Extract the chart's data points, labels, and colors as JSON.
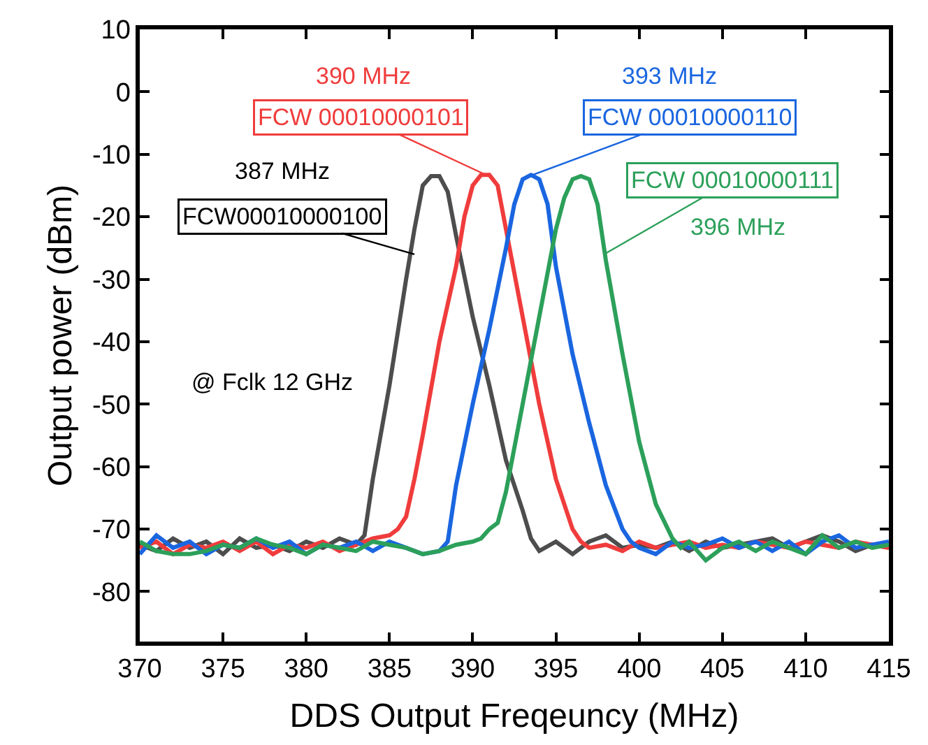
{
  "chart_data": {
    "type": "line",
    "xlabel": "DDS Output Freqeuncy (MHz)",
    "ylabel": "Output power (dBm)",
    "xlim": [
      370,
      415
    ],
    "xticks": [
      370,
      375,
      380,
      385,
      390,
      395,
      400,
      405,
      410,
      415
    ],
    "ylim": [
      -88,
      10
    ],
    "yticks": [
      -80,
      -70,
      -60,
      -50,
      -40,
      -30,
      -20,
      -10,
      0,
      10
    ],
    "marker": "none",
    "line_style": "solid",
    "series": [
      {
        "color": "#4d4d4d",
        "x": [
          370,
          371,
          372,
          373,
          374,
          375,
          376,
          377,
          378,
          379,
          380,
          381,
          382,
          383,
          383.5,
          384,
          385,
          386,
          386.5,
          387,
          387.5,
          388,
          388.5,
          389,
          390,
          391,
          392,
          393,
          393.5,
          394,
          395,
          396,
          397,
          398,
          399,
          400,
          401,
          402,
          403,
          404,
          405,
          406,
          407,
          408,
          409,
          410,
          411,
          412,
          413,
          414,
          415
        ],
        "values": [
          -72.5,
          -73.5,
          -71.5,
          -73,
          -72,
          -74,
          -71.5,
          -73,
          -72.5,
          -73.5,
          -72,
          -73,
          -71.5,
          -72.5,
          -71,
          -62,
          -47,
          -30,
          -22,
          -15,
          -13.5,
          -13.5,
          -16,
          -23,
          -36,
          -47,
          -59,
          -67,
          -71.5,
          -73.5,
          -72,
          -74,
          -72,
          -71,
          -73,
          -72.5,
          -73,
          -72,
          -73.5,
          -72,
          -73,
          -72.5,
          -72,
          -71.5,
          -73,
          -72,
          -71,
          -72,
          -73.5,
          -72.5,
          -73
        ]
      },
      {
        "color": "#f03c3c",
        "x": [
          370,
          371,
          372,
          373,
          374,
          375,
          376,
          377,
          378,
          379,
          380,
          381,
          382,
          383,
          384,
          385,
          385.5,
          386,
          386.5,
          387,
          388,
          389,
          389.5,
          390,
          390.5,
          391,
          391.5,
          392,
          393,
          394,
          395,
          396,
          396.5,
          397,
          398,
          399,
          400,
          401,
          402,
          403,
          404,
          405,
          406,
          407,
          408,
          409,
          410,
          411,
          412,
          413,
          414,
          415
        ],
        "values": [
          -73,
          -72,
          -74,
          -72.5,
          -73,
          -72,
          -73.5,
          -72,
          -74,
          -72.5,
          -73,
          -72,
          -73.5,
          -72.5,
          -71.5,
          -71,
          -70,
          -68,
          -62,
          -55,
          -40,
          -28,
          -20,
          -15,
          -13.3,
          -13.3,
          -15,
          -22,
          -36,
          -50,
          -62,
          -70,
          -72,
          -73,
          -72.5,
          -73.5,
          -72,
          -73,
          -72.5,
          -72,
          -73,
          -72.5,
          -73,
          -72,
          -72.5,
          -73,
          -72,
          -72.5,
          -73,
          -72,
          -72.5,
          -73
        ]
      },
      {
        "color": "#1a66e0",
        "x": [
          370,
          371,
          372,
          373,
          374,
          375,
          376,
          377,
          378,
          379,
          380,
          381,
          382,
          383,
          384,
          385,
          386,
          387,
          388,
          388.5,
          389,
          390,
          391,
          392,
          392.5,
          393,
          393.5,
          394,
          394.5,
          395,
          396,
          397,
          398,
          399,
          399.5,
          400,
          401,
          402,
          403,
          404,
          405,
          406,
          407,
          408,
          409,
          410,
          411,
          412,
          413,
          414,
          415
        ],
        "values": [
          -74,
          -71,
          -73,
          -72,
          -74,
          -72.5,
          -73,
          -71.5,
          -73,
          -72,
          -74,
          -72.5,
          -73,
          -72,
          -73.5,
          -72,
          -73,
          -74,
          -73.5,
          -72,
          -63,
          -50,
          -38,
          -25,
          -18,
          -14,
          -13.3,
          -14,
          -18,
          -28,
          -42,
          -53,
          -63,
          -70,
          -72,
          -73,
          -74,
          -72,
          -73,
          -72.5,
          -71.5,
          -73,
          -72,
          -73.5,
          -72,
          -74,
          -72,
          -71,
          -73,
          -72.5,
          -72
        ]
      },
      {
        "color": "#2ca05a",
        "x": [
          370,
          371,
          372,
          373,
          374,
          375,
          376,
          377,
          378,
          379,
          380,
          381,
          382,
          383,
          384,
          385,
          386,
          387,
          388,
          389,
          390,
          390.5,
          391,
          391.5,
          392,
          393,
          394,
          395,
          395.5,
          396,
          396.5,
          397,
          397.5,
          398,
          399,
          400,
          401,
          402,
          402.5,
          403,
          404,
          405,
          406,
          407,
          408,
          409,
          410,
          411,
          412,
          413,
          414,
          415
        ],
        "values": [
          -72,
          -73.5,
          -74,
          -74,
          -73.5,
          -72.5,
          -73,
          -71.5,
          -72.5,
          -73,
          -74,
          -72.5,
          -73,
          -73.5,
          -72,
          -72.5,
          -73,
          -74,
          -73.5,
          -72.5,
          -72,
          -71.5,
          -70,
          -69,
          -64,
          -50,
          -36,
          -22,
          -17,
          -14,
          -13.5,
          -14,
          -18,
          -27,
          -42,
          -56,
          -66,
          -71.5,
          -73,
          -72,
          -75,
          -73,
          -72,
          -73.5,
          -72,
          -73,
          -74,
          -71,
          -73,
          -72,
          -73,
          -72.5
        ]
      }
    ],
    "annotations": [
      "390 MHz",
      {
        "text": "FCW 00010000101",
        "x": 390.8,
        "y": -13.3
      },
      "393 MHz",
      {
        "text": "FCW 00010000110",
        "x": 393.6,
        "y": -13.3
      },
      "387 MHz",
      {
        "text": "FCW00010000100",
        "x": 386.5,
        "y": -26
      },
      {
        "text": "FCW 00010000111",
        "x": 397.9,
        "y": -26
      },
      "396 MHz",
      "@ Fclk 12 GHz"
    ]
  }
}
